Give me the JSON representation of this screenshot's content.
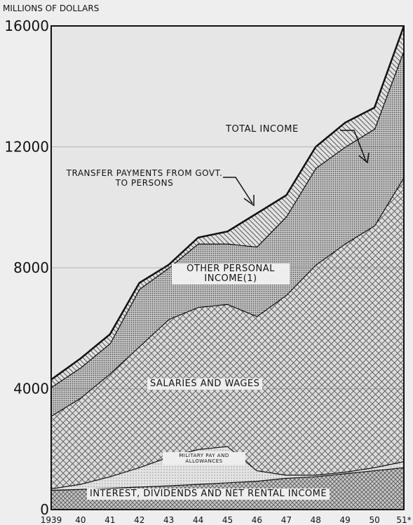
{
  "chart_data": {
    "type": "stacked_area",
    "y_label": "MILLIONS OF DOLLARS",
    "categories": [
      "1939",
      "40",
      "41",
      "42",
      "43",
      "44",
      "45",
      "46",
      "47",
      "48",
      "49",
      "50",
      "51*"
    ],
    "series": [
      {
        "name": "INTEREST, DIVIDENDS AND NET RENTAL INCOME",
        "color": "#9a9a9a",
        "values": [
          650,
          680,
          720,
          760,
          800,
          850,
          900,
          950,
          1050,
          1100,
          1200,
          1300,
          1400
        ]
      },
      {
        "name": "MILITARY PAY AND ALLOWANCES",
        "color": "#d8d8d8",
        "values": [
          50,
          170,
          380,
          640,
          950,
          1150,
          1200,
          350,
          100,
          50,
          50,
          100,
          200
        ]
      },
      {
        "name": "SALARIES AND WAGES",
        "color": "#b8b8b8",
        "values": [
          2400,
          2850,
          3400,
          4000,
          4550,
          4700,
          4700,
          5100,
          5950,
          6950,
          7550,
          8000,
          9400
        ]
      },
      {
        "name": "OTHER PERSONAL INCOME(1)",
        "color": "#8c8c8c",
        "values": [
          950,
          1000,
          1000,
          1900,
          1700,
          2100,
          2000,
          2300,
          2600,
          3200,
          3200,
          3200,
          4200
        ]
      },
      {
        "name": "TRANSFER PAYMENTS FROM GOVT. TO PERSONS",
        "color": "#d0d0d0",
        "values": [
          250,
          300,
          300,
          200,
          100,
          200,
          400,
          1100,
          700,
          700,
          800,
          700,
          800
        ]
      }
    ],
    "annotations": [
      "TOTAL INCOME"
    ],
    "ylim": [
      0,
      16000
    ],
    "yticks": [
      0,
      4000,
      8000,
      12000,
      16000
    ],
    "grid": true
  }
}
